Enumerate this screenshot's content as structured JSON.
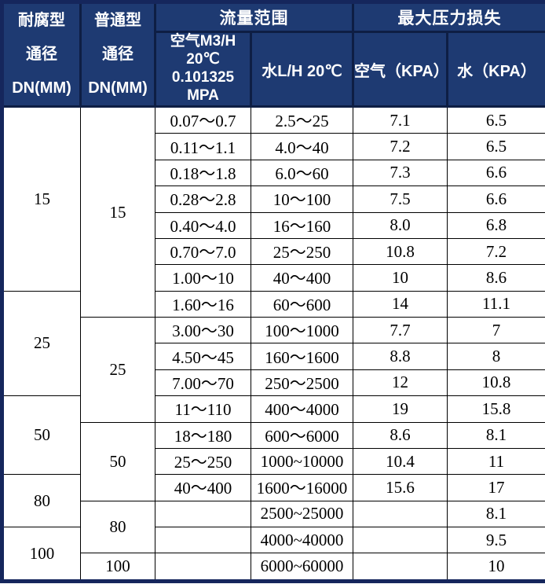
{
  "colors": {
    "header_background": "#1e3a72",
    "header_grid": "#0e1e44",
    "outer_border": "#15265c",
    "data_grid": "#000000",
    "header_text": "#ffffff",
    "data_text": "#000000"
  },
  "table": {
    "headers": {
      "anticorrosive_dn": "耐腐型\n通径\nDN(MM)",
      "normal_dn": "普通型\n通径\nDN(MM)",
      "flow_range_group": "流量范围",
      "max_pressure_loss_group": "最大压力损失",
      "air_flow": "空气M3/H\n20℃\n0.101325\nMPA",
      "water_flow": "水L/H 20℃",
      "air_kpa": "空气（KPA）",
      "water_kpa": "水（KPA）"
    },
    "col1_spans": [
      {
        "label": "15",
        "start": 1,
        "span": 7
      },
      {
        "label": "25",
        "start": 8,
        "span": 4
      },
      {
        "label": "50",
        "start": 12,
        "span": 3
      },
      {
        "label": "80",
        "start": 15,
        "span": 2
      },
      {
        "label": "100",
        "start": 17,
        "span": 2
      }
    ],
    "col2_spans": [
      {
        "label": "15",
        "start": 1,
        "span": 8
      },
      {
        "label": "25",
        "start": 9,
        "span": 4
      },
      {
        "label": "50",
        "start": 13,
        "span": 3
      },
      {
        "label": "80",
        "start": 16,
        "span": 2
      },
      {
        "label": "100",
        "start": 18,
        "span": 1
      }
    ],
    "rows": [
      [
        "0.07～0.7",
        "2.5～25",
        "7.1",
        "6.5"
      ],
      [
        "0.11～1.1",
        "4.0～40",
        "7.2",
        "6.5"
      ],
      [
        "0.18～1.8",
        "6.0～60",
        "7.3",
        "6.6"
      ],
      [
        "0.28～2.8",
        "10～100",
        "7.5",
        "6.6"
      ],
      [
        "0.40～4.0",
        "16～160",
        "8.0",
        "6.8"
      ],
      [
        "0.70～7.0",
        "25～250",
        "10.8",
        "7.2"
      ],
      [
        "1.00～10",
        "40～400",
        "10",
        "8.6"
      ],
      [
        "1.60～16",
        "60～600",
        "14",
        "11.1"
      ],
      [
        "3.00～30",
        "100～1000",
        "7.7",
        "7"
      ],
      [
        "4.50～45",
        "160～1600",
        "8.8",
        "8"
      ],
      [
        "7.00～70",
        "250～2500",
        "12",
        "10.8"
      ],
      [
        "11～110",
        "400～4000",
        "19",
        "15.8"
      ],
      [
        "18～180",
        "600～6000",
        "8.6",
        "8.1"
      ],
      [
        "25～250",
        "1000~10000",
        "10.4",
        "11"
      ],
      [
        "40～400",
        "1600～16000",
        "15.6",
        "17"
      ],
      [
        "",
        "2500~25000",
        "",
        "8.1"
      ],
      [
        "",
        "4000~40000",
        "",
        "9.5"
      ],
      [
        "",
        "6000~60000",
        "",
        "10"
      ]
    ]
  }
}
